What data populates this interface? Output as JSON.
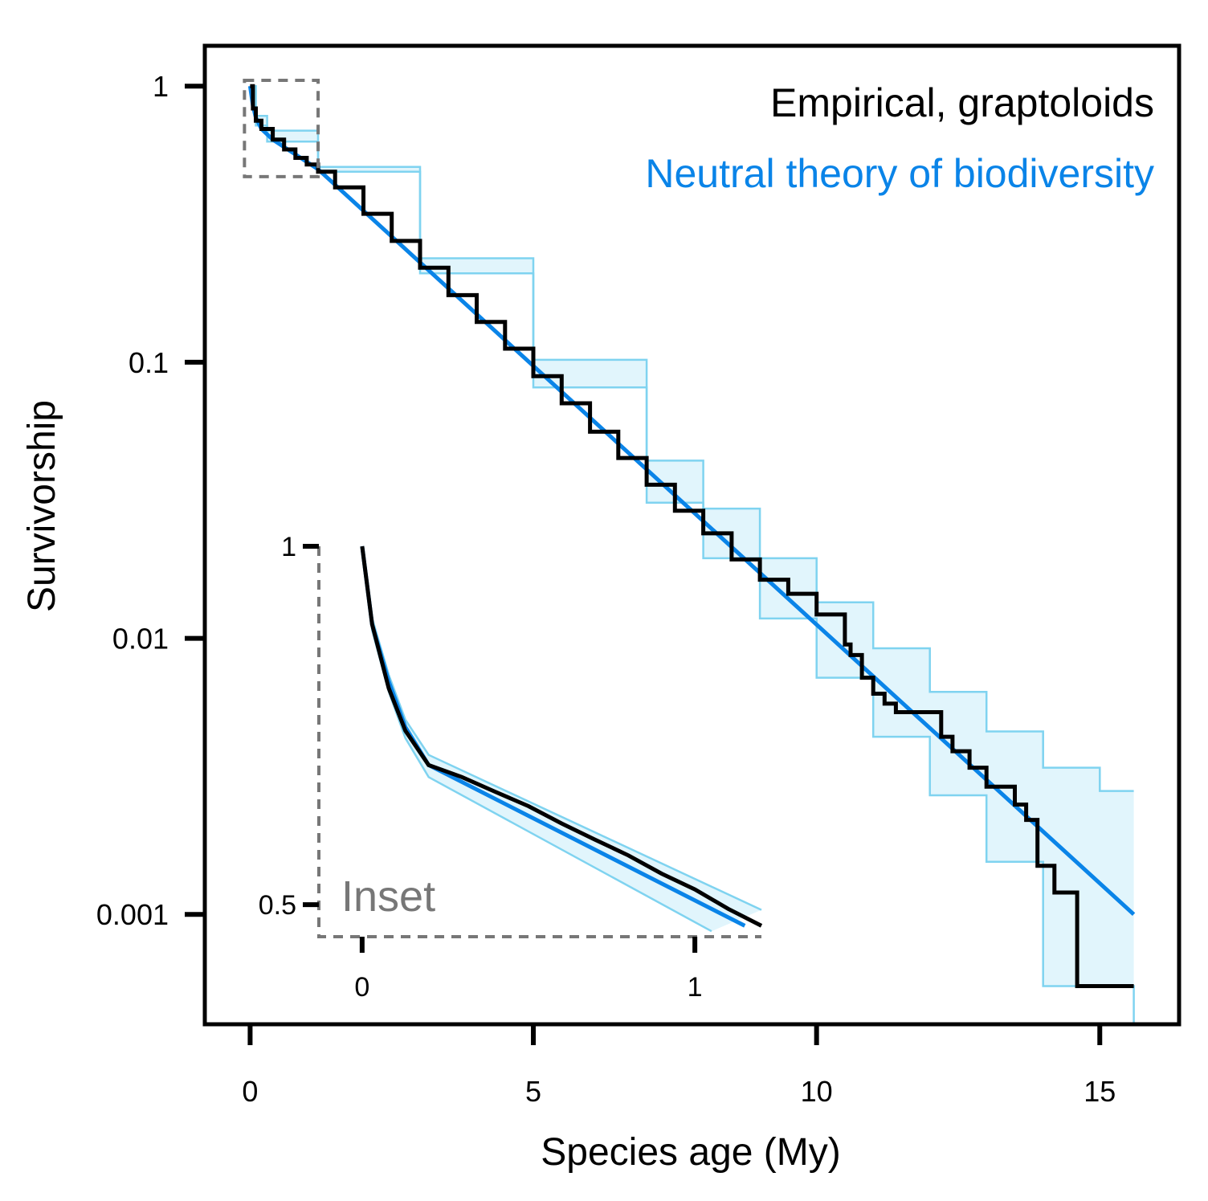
{
  "chart_data": {
    "type": "line",
    "xlabel": "Species age (My)",
    "ylabel": "Survivorship",
    "x_scale": "linear",
    "y_scale": "log",
    "xlim": [
      -0.8,
      16.4
    ],
    "ylim": [
      0.0004,
      1.4
    ],
    "x_ticks": [
      0,
      5,
      10,
      15
    ],
    "x_tick_labels": [
      "0",
      "5",
      "10",
      "15"
    ],
    "y_ticks": [
      1,
      0.1,
      0.01,
      0.001
    ],
    "y_tick_labels": [
      "1",
      "0.1",
      "0.01",
      "0.001"
    ],
    "grid": false,
    "legend": [
      {
        "label": "Empirical, graptoloids",
        "color": "#000000"
      },
      {
        "label": "Neutral theory of biodiversity",
        "color": "#0a84e8"
      }
    ],
    "legend_placement": "top-right",
    "series": [
      {
        "name": "Empirical, graptoloids",
        "color": "#000000",
        "style": "step",
        "points": [
          [
            0,
            1.0
          ],
          [
            0.05,
            0.83
          ],
          [
            0.1,
            0.75
          ],
          [
            0.2,
            0.7
          ],
          [
            0.4,
            0.64
          ],
          [
            0.6,
            0.59
          ],
          [
            0.8,
            0.55
          ],
          [
            1.0,
            0.52
          ],
          [
            1.2,
            0.49
          ],
          [
            1.5,
            0.43
          ],
          [
            2.0,
            0.345
          ],
          [
            2.5,
            0.275
          ],
          [
            3.0,
            0.22
          ],
          [
            3.5,
            0.175
          ],
          [
            4.0,
            0.14
          ],
          [
            4.5,
            0.112
          ],
          [
            5.0,
            0.089
          ],
          [
            5.5,
            0.071
          ],
          [
            6.0,
            0.056
          ],
          [
            6.5,
            0.045
          ],
          [
            7.0,
            0.036
          ],
          [
            7.5,
            0.029
          ],
          [
            8.0,
            0.024
          ],
          [
            8.5,
            0.0193
          ],
          [
            9.0,
            0.0163
          ],
          [
            9.5,
            0.0145
          ],
          [
            10.0,
            0.0122
          ],
          [
            10.5,
            0.0095
          ],
          [
            10.6,
            0.0087
          ],
          [
            10.8,
            0.0072
          ],
          [
            11.0,
            0.0063
          ],
          [
            11.2,
            0.0058
          ],
          [
            11.4,
            0.0054
          ],
          [
            11.6,
            0.0054
          ],
          [
            12.0,
            0.0054
          ],
          [
            12.2,
            0.0044
          ],
          [
            12.4,
            0.0039
          ],
          [
            12.7,
            0.0034
          ],
          [
            13.0,
            0.0029
          ],
          [
            13.5,
            0.0025
          ],
          [
            13.7,
            0.0022
          ],
          [
            13.9,
            0.0015
          ],
          [
            14.2,
            0.0012
          ],
          [
            14.6,
            0.00055
          ],
          [
            15.6,
            0.00055
          ]
        ]
      },
      {
        "name": "Neutral theory of biodiversity",
        "color": "#0a84e8",
        "style": "line",
        "points": [
          [
            0,
            1.0
          ],
          [
            0.05,
            0.85
          ],
          [
            0.1,
            0.77
          ],
          [
            0.2,
            0.7
          ],
          [
            0.4,
            0.64
          ],
          [
            1.2,
            0.5
          ],
          [
            15.6,
            0.001
          ]
        ]
      },
      {
        "name": "",
        "role": "envelope-upper",
        "color": "#7fd3f0",
        "fill": "#e1f5fc",
        "style": "step",
        "points": [
          [
            0,
            1.0
          ],
          [
            0.1,
            0.78
          ],
          [
            0.3,
            0.69
          ],
          [
            1.2,
            0.51
          ],
          [
            3.0,
            0.238
          ],
          [
            5.0,
            0.102
          ],
          [
            7.0,
            0.044
          ],
          [
            8.0,
            0.0295
          ],
          [
            9.0,
            0.0195
          ],
          [
            10.0,
            0.0135
          ],
          [
            11.0,
            0.0092
          ],
          [
            12.0,
            0.0064
          ],
          [
            13.0,
            0.0046
          ],
          [
            14.0,
            0.0034
          ],
          [
            15.0,
            0.0028
          ],
          [
            15.6,
            0.0028
          ]
        ]
      },
      {
        "name": "",
        "role": "envelope-lower",
        "color": "#7fd3f0",
        "fill": "#e1f5fc",
        "style": "step",
        "points": [
          [
            0,
            1.0
          ],
          [
            0.1,
            0.72
          ],
          [
            0.3,
            0.63
          ],
          [
            1.2,
            0.49
          ],
          [
            3.0,
            0.21
          ],
          [
            5.0,
            0.081
          ],
          [
            7.0,
            0.031
          ],
          [
            8.0,
            0.0195
          ],
          [
            9.0,
            0.0118
          ],
          [
            10.0,
            0.0072
          ],
          [
            11.0,
            0.0044
          ],
          [
            12.0,
            0.0027
          ],
          [
            13.0,
            0.00155
          ],
          [
            14.0,
            0.00055
          ],
          [
            15.6,
            0.0003
          ]
        ]
      }
    ],
    "inset": {
      "label": "Inset",
      "xlim": [
        -0.13,
        1.2
      ],
      "ylim": [
        0.47,
        1.0
      ],
      "x_ticks": [
        0,
        1
      ],
      "x_tick_labels": [
        "0",
        "1"
      ],
      "y_ticks": [
        1,
        0.5
      ],
      "y_tick_labels": [
        "1",
        "0.5"
      ],
      "zoom_region": {
        "x": [
          -0.1,
          1.2
        ],
        "y": [
          0.47,
          1.05
        ]
      },
      "series": [
        {
          "name": "Empirical, graptoloids",
          "color": "#000000",
          "points": [
            [
              0,
              1.0
            ],
            [
              0.03,
              0.86
            ],
            [
              0.08,
              0.76
            ],
            [
              0.13,
              0.7
            ],
            [
              0.2,
              0.655
            ],
            [
              0.3,
              0.64
            ],
            [
              0.4,
              0.622
            ],
            [
              0.5,
              0.605
            ],
            [
              0.6,
              0.585
            ],
            [
              0.7,
              0.567
            ],
            [
              0.8,
              0.55
            ],
            [
              0.9,
              0.531
            ],
            [
              1.0,
              0.515
            ],
            [
              1.1,
              0.496
            ],
            [
              1.2,
              0.48
            ]
          ]
        },
        {
          "name": "Neutral theory of biodiversity",
          "color": "#0a84e8",
          "points": [
            [
              0,
              1.0
            ],
            [
              0.03,
              0.86
            ],
            [
              0.08,
              0.77
            ],
            [
              0.13,
              0.705
            ],
            [
              0.2,
              0.655
            ],
            [
              1.15,
              0.48
            ]
          ]
        },
        {
          "name": "",
          "role": "envelope-upper",
          "color": "#7fd3f0",
          "points": [
            [
              0,
              1.0
            ],
            [
              0.03,
              0.87
            ],
            [
              0.08,
              0.78
            ],
            [
              0.13,
              0.715
            ],
            [
              0.2,
              0.668
            ],
            [
              1.2,
              0.495
            ]
          ]
        },
        {
          "name": "",
          "role": "envelope-lower",
          "color": "#7fd3f0",
          "points": [
            [
              0,
              1.0
            ],
            [
              0.03,
              0.85
            ],
            [
              0.08,
              0.755
            ],
            [
              0.13,
              0.69
            ],
            [
              0.2,
              0.64
            ],
            [
              1.05,
              0.475
            ]
          ]
        }
      ]
    }
  }
}
